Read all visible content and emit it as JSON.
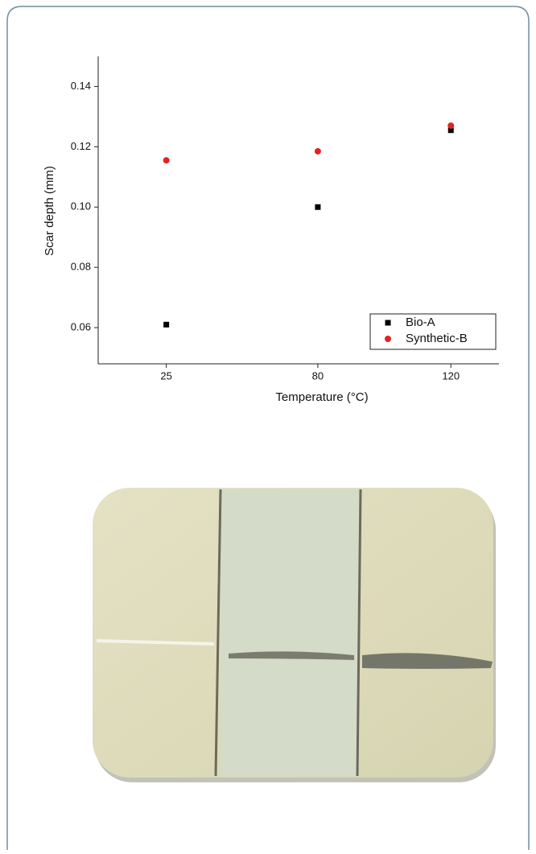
{
  "chart_data": {
    "type": "scatter",
    "x_label": "Temperature (°C)",
    "y_label": "Scar depth (mm)",
    "categories": [
      "25",
      "80",
      "120"
    ],
    "series": [
      {
        "name": "Bio-A",
        "color": "#000000",
        "marker": "square",
        "values": [
          0.061,
          0.1,
          0.1255
        ]
      },
      {
        "name": "Synthetic-B",
        "color": "#e02424",
        "marker": "circle",
        "values": [
          0.1155,
          0.1185,
          0.127
        ]
      }
    ],
    "ylim": [
      0.048,
      0.15
    ],
    "yticks": [
      0.06,
      0.08,
      {
        "value": 0.1,
        "label": "0.10"
      },
      0.12,
      0.14
    ],
    "legend": "lower right",
    "grid": false
  }
}
